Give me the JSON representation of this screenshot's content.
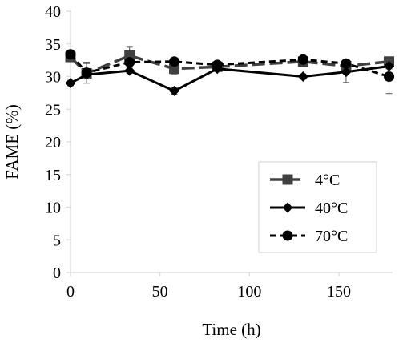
{
  "chart_data": {
    "type": "line",
    "xlabel": "Time (h)",
    "ylabel": "FAME (%)",
    "xlim": [
      0,
      180
    ],
    "ylim": [
      0,
      40
    ],
    "xticks": [
      "0",
      "50",
      "100",
      "150"
    ],
    "xtick_values": [
      0,
      50,
      100,
      150
    ],
    "yticks": [
      "0",
      "5",
      "10",
      "15",
      "20",
      "25",
      "30",
      "35",
      "40"
    ],
    "ytick_values": [
      0,
      5,
      10,
      15,
      20,
      25,
      30,
      35,
      40
    ],
    "grid": false,
    "legend_position": "bottom-right",
    "series": [
      {
        "name": "4°C",
        "style": "long-dash",
        "marker": "square",
        "color": "#404040",
        "x": [
          0,
          9,
          33,
          58,
          82,
          130,
          154,
          178
        ],
        "y": [
          33.0,
          30.5,
          33.2,
          31.2,
          31.5,
          32.3,
          31.6,
          32.3
        ],
        "err": [
          0.6,
          1.5,
          1.3,
          0.8,
          0.5,
          0.6,
          0.6,
          0.6
        ]
      },
      {
        "name": "40°C",
        "style": "solid",
        "marker": "diamond",
        "color": "#000000",
        "x": [
          0,
          9,
          33,
          58,
          82,
          130,
          154,
          178
        ],
        "y": [
          29.0,
          30.3,
          30.9,
          27.8,
          31.2,
          30.0,
          30.7,
          31.6
        ],
        "err": [
          0.4,
          0.5,
          0.4,
          0.5,
          0.4,
          0.4,
          1.6,
          0.4
        ]
      },
      {
        "name": "70°C",
        "style": "dash",
        "marker": "circle",
        "color": "#000000",
        "x": [
          0,
          9,
          33,
          58,
          82,
          130,
          154,
          178
        ],
        "y": [
          33.4,
          30.6,
          32.2,
          32.3,
          31.8,
          32.6,
          32.0,
          30.0
        ],
        "err": [
          0.5,
          1.6,
          0.6,
          0.5,
          0.4,
          0.5,
          0.5,
          2.6
        ]
      }
    ]
  },
  "colors": {
    "axis": "#d9d9d9",
    "series_4c": "#404040",
    "series_40c": "#000000",
    "series_70c": "#000000"
  }
}
